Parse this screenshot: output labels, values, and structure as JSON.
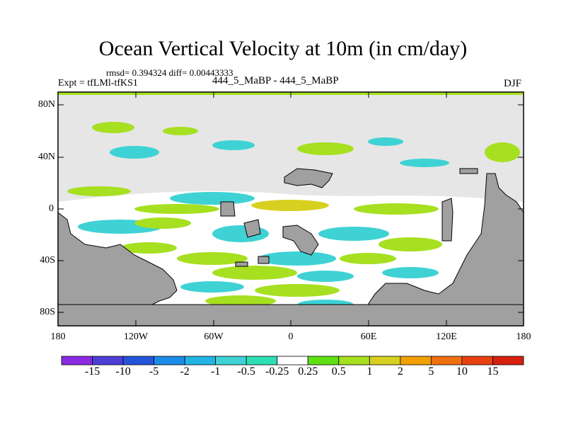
{
  "header": {
    "title": "Ocean Vertical Velocity at 10m (in cm/day)",
    "stats": "rmsd= 0.394324 diff= 0.00443333",
    "expt": "Expt = tfLMl-tfKS1",
    "case": "444_5_MaBP - 444_5_MaBP",
    "season": "DJF"
  },
  "axes": {
    "lat_labels": [
      "80N",
      "40N",
      "0",
      "40S",
      "80S"
    ],
    "lon_labels": [
      "180",
      "120W",
      "60W",
      "0",
      "60E",
      "120E",
      "180"
    ]
  },
  "colorbar": {
    "labels": [
      "-15",
      "-10",
      "-5",
      "-2",
      "-1",
      "-0.5",
      "-0.25",
      "0.25",
      "0.5",
      "1",
      "2",
      "5",
      "10",
      "15"
    ],
    "colors": [
      "#8a2be2",
      "#4b3fd6",
      "#2454d8",
      "#1c8ce6",
      "#22b5e4",
      "#3fd2d4",
      "#2de0b4",
      "#ffffff",
      "#5fe012",
      "#a6e020",
      "#d8d020",
      "#f0a000",
      "#f07010",
      "#e84010",
      "#d82010"
    ]
  },
  "colors": {
    "land": "#a0a0a0",
    "background_field": "#e6e6e6"
  }
}
